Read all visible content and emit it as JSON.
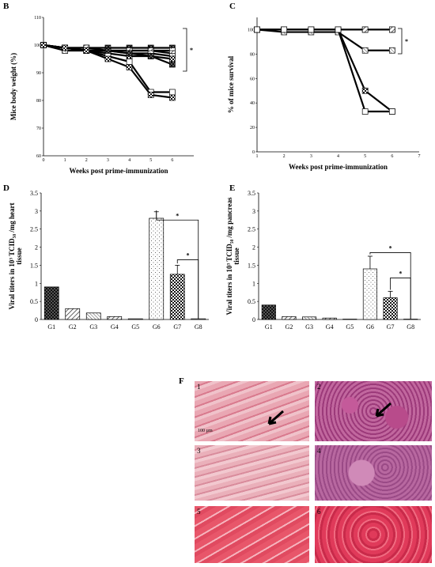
{
  "panels": {
    "B": "B",
    "C": "C",
    "D": "D",
    "E": "E",
    "F": "F"
  },
  "chart_data": [
    {
      "panel": "B",
      "type": "line",
      "xlabel": "Weeks post prime-immunization",
      "ylabel": "Mice body weight (%)",
      "x": [
        0,
        1,
        2,
        3,
        4,
        5,
        6
      ],
      "xticks": [
        "0",
        "1",
        "2",
        "3",
        "4",
        "5",
        "6"
      ],
      "yticks": [
        "60",
        "70",
        "80",
        "90",
        "100",
        "110"
      ],
      "ylim": [
        60,
        110
      ],
      "xlim": [
        0,
        7
      ],
      "annotation": "*",
      "series": [
        {
          "values": [
            100,
            99,
            99,
            99,
            99,
            99,
            99
          ],
          "pattern": "dark"
        },
        {
          "values": [
            100,
            99,
            98,
            98,
            98,
            98,
            98
          ],
          "pattern": "dots"
        },
        {
          "values": [
            100,
            99,
            99,
            98,
            98,
            98,
            97
          ],
          "pattern": "hatch"
        },
        {
          "values": [
            100,
            98,
            98,
            98,
            97,
            97,
            96
          ],
          "pattern": "hatch2"
        },
        {
          "values": [
            100,
            99,
            98,
            97,
            96,
            96,
            95
          ],
          "pattern": "checker"
        },
        {
          "values": [
            100,
            99,
            98,
            98,
            97,
            96,
            93
          ],
          "pattern": "dark"
        },
        {
          "values": [
            100,
            99,
            98,
            96,
            94,
            83,
            83
          ],
          "pattern": "white"
        },
        {
          "values": [
            100,
            99,
            98,
            95,
            92,
            82,
            81
          ],
          "pattern": "checker"
        }
      ]
    },
    {
      "panel": "C",
      "type": "line",
      "xlabel": "Weeks post prime-immunization",
      "ylabel": "% of mice survival",
      "x": [
        1,
        2,
        3,
        4,
        5,
        6
      ],
      "xticks": [
        "1",
        "2",
        "3",
        "4",
        "5",
        "6",
        "7"
      ],
      "yticks": [
        "0",
        "20",
        "40",
        "60",
        "80",
        "100"
      ],
      "ylim": [
        0,
        110
      ],
      "xlim": [
        1,
        7
      ],
      "annotation": "*",
      "series": [
        {
          "values": [
            100,
            100,
            100,
            100,
            100,
            100
          ],
          "pattern": "dark"
        },
        {
          "values": [
            100,
            100,
            100,
            100,
            100,
            100
          ],
          "pattern": "hatch"
        },
        {
          "values": [
            100,
            98,
            98,
            98,
            83,
            83
          ],
          "pattern": "hatch2"
        },
        {
          "values": [
            100,
            100,
            100,
            100,
            50,
            33
          ],
          "pattern": "checker"
        },
        {
          "values": [
            100,
            100,
            100,
            100,
            33,
            33
          ],
          "pattern": "white"
        }
      ]
    },
    {
      "panel": "D",
      "type": "bar",
      "ylabel": "Viral titers in 10³ TCID₅₀ /mg heart tissue",
      "categories": [
        "G1",
        "G2",
        "G3",
        "G4",
        "G5",
        "G6",
        "G7",
        "G8"
      ],
      "values": [
        0.9,
        0.3,
        0.18,
        0.08,
        0.02,
        2.8,
        1.25,
        0.02
      ],
      "errors": [
        0,
        0,
        0,
        0,
        0,
        0.18,
        0.25,
        0
      ],
      "patterns": [
        "dark",
        "hatch",
        "hatch2",
        "hatch",
        "white",
        "dots",
        "checker",
        "white"
      ],
      "yticks": [
        "0",
        "0.5",
        "1",
        "1.5",
        "2",
        "2.5",
        "3",
        "3.5"
      ],
      "ylim": [
        0,
        3.5
      ],
      "annotations": [
        "*",
        "*"
      ]
    },
    {
      "panel": "E",
      "type": "bar",
      "ylabel": "Viral titers in 10³ TCID₅₀ /mg pancreas tissue",
      "categories": [
        "G1",
        "G2",
        "G3",
        "G4",
        "G5",
        "G6",
        "G7",
        "G8"
      ],
      "values": [
        0.4,
        0.08,
        0.07,
        0.04,
        0.01,
        1.4,
        0.6,
        0.01
      ],
      "errors": [
        0,
        0,
        0,
        0,
        0,
        0.35,
        0.18,
        0
      ],
      "patterns": [
        "dark",
        "hatch",
        "hatch2",
        "hatch",
        "white",
        "dots",
        "checker",
        "white"
      ],
      "yticks": [
        "0",
        "0.5",
        "1",
        "1.5",
        "2",
        "2.5",
        "3",
        "3.5"
      ],
      "ylim": [
        0,
        3.5
      ],
      "annotations": [
        "*",
        "*"
      ]
    }
  ],
  "micrographs": [
    {
      "num": "1",
      "tissue": "heart",
      "arrow": true,
      "scale": "100 µm"
    },
    {
      "num": "2",
      "tissue": "pancreas",
      "arrow": true
    },
    {
      "num": "3",
      "tissue": "heart"
    },
    {
      "num": "4",
      "tissue": "pancreas"
    },
    {
      "num": "5",
      "tissue": "heart"
    },
    {
      "num": "6",
      "tissue": "pancreas"
    }
  ]
}
